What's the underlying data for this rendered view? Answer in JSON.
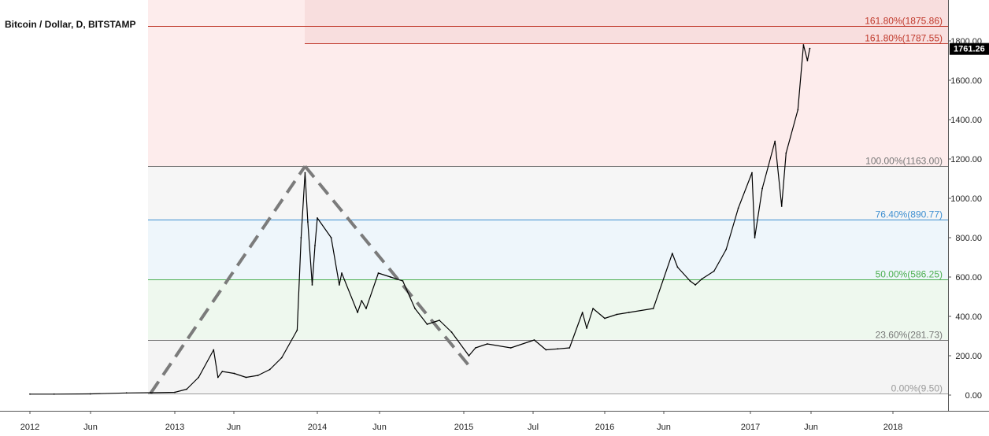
{
  "header": {
    "symbol_title": "Bitcoin / Dollar, D, BITSTAMP"
  },
  "colors": {
    "price": "#000000",
    "trend_dash": "#7b7b7b",
    "fib_0": "#9a9a9a",
    "fib_236": "#777777",
    "fib_50": "#4caf50",
    "fib_764": "#3d8fd1",
    "fib_100": "#777777",
    "fib_1618": "#c0392b",
    "zone_ext": "#fdecec",
    "zone_ext_top": "#f8dede",
    "zone_100_764": "#f6f6f6",
    "zone_764_50": "#eef6fb",
    "zone_50_236": "#eef8ee",
    "zone_236_0": "#f4f4f4",
    "price_badge": "#000000"
  },
  "chart_data": {
    "type": "line",
    "title": "Bitcoin / Dollar, D, BITSTAMP",
    "xlabel": "",
    "ylabel": "",
    "ylim": [
      -150,
      2000
    ],
    "grid": false,
    "x_ticks": [
      "2012",
      "Jun",
      "2013",
      "Jun",
      "2014",
      "Jun",
      "2015",
      "Jul",
      "2016",
      "Jun",
      "2017",
      "Jun",
      "2018"
    ],
    "y_ticks": [
      "0.00",
      "200.00",
      "400.00",
      "600.00",
      "800.00",
      "1000.00",
      "1200.00",
      "1400.00",
      "1600.00",
      "1800.00"
    ],
    "last_price": "1761.26",
    "series": [
      {
        "x": [
          "2012-01",
          "2012-03",
          "2012-06",
          "2012-09",
          "2012-11",
          "2013-01",
          "2013-02",
          "2013-03",
          "2013-04-09",
          "2013-04-20",
          "2013-05",
          "2013-06",
          "2013-07",
          "2013-08",
          "2013-09",
          "2013-10",
          "2013-11-10",
          "2013-11-20",
          "2013-11-30",
          "2013-12-07",
          "2013-12-18",
          "2013-12-25",
          "2014-01",
          "2014-02-05",
          "2014-02-25",
          "2014-03",
          "2014-04-10",
          "2014-04-20",
          "2014-05",
          "2014-06",
          "2014-07",
          "2014-08",
          "2014-09",
          "2014-10",
          "2014-11",
          "2014-12",
          "2015-01-14",
          "2015-02",
          "2015-03",
          "2015-05",
          "2015-07",
          "2015-08",
          "2015-09",
          "2015-10",
          "2015-11-04",
          "2015-11-15",
          "2015-12",
          "2016-01",
          "2016-02",
          "2016-03",
          "2016-05",
          "2016-06-18",
          "2016-07",
          "2016-08-02",
          "2016-08-15",
          "2016-09",
          "2016-10",
          "2016-11",
          "2016-12",
          "2017-01-05",
          "2017-01-12",
          "2017-02",
          "2017-03-03",
          "2017-03-20",
          "2017-04",
          "2017-05-01",
          "2017-05-15",
          "2017-05-25",
          "2017-06-01"
        ],
        "values": [
          5,
          5,
          6,
          11,
          12,
          14,
          30,
          90,
          230,
          90,
          120,
          110,
          90,
          100,
          130,
          190,
          330,
          800,
          1130,
          880,
          560,
          760,
          900,
          800,
          560,
          620,
          420,
          480,
          440,
          620,
          600,
          580,
          440,
          360,
          380,
          320,
          200,
          240,
          260,
          240,
          280,
          230,
          235,
          240,
          420,
          340,
          440,
          390,
          410,
          420,
          440,
          720,
          650,
          580,
          560,
          590,
          630,
          740,
          950,
          1130,
          800,
          1050,
          1290,
          960,
          1230,
          1450,
          1780,
          1700,
          1761.26
        ]
      }
    ],
    "fib_levels": [
      {
        "label": "0.00%(9.50)",
        "value": 9.5
      },
      {
        "label": "23.60%(281.73)",
        "value": 281.73
      },
      {
        "label": "50.00%(586.25)",
        "value": 586.25
      },
      {
        "label": "76.40%(890.77)",
        "value": 890.77
      },
      {
        "label": "100.00%(1163.00)",
        "value": 1163.0
      },
      {
        "label": "161.80%(1787.55)",
        "value": 1787.55
      },
      {
        "label": "161.80%(1875.86)",
        "value": 1875.86
      }
    ],
    "trend_lines": [
      {
        "from": [
          "2012-11",
          9.5
        ],
        "to": [
          "2013-11-30",
          1163
        ]
      },
      {
        "from": [
          "2013-11-30",
          1163
        ],
        "to": [
          "2015-01-14",
          150
        ]
      }
    ]
  }
}
